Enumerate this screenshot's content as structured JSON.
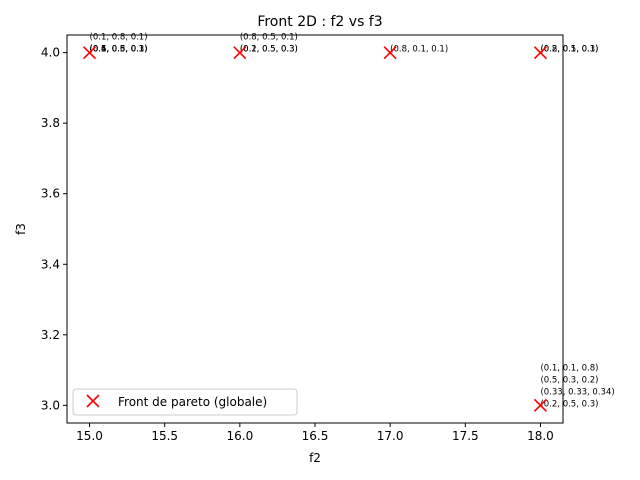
{
  "chart_data": {
    "type": "scatter",
    "title": "Front 2D : f2 vs f3",
    "xlabel": "f2",
    "ylabel": "f3",
    "xlim": [
      14.85,
      18.15
    ],
    "ylim": [
      2.95,
      4.05
    ],
    "x_ticks": [
      15.0,
      15.5,
      16.0,
      16.5,
      17.0,
      17.5,
      18.0
    ],
    "x_tick_labels": [
      "15.0",
      "15.5",
      "16.0",
      "16.5",
      "17.0",
      "17.5",
      "18.0"
    ],
    "y_ticks": [
      3.0,
      3.2,
      3.4,
      3.6,
      3.8,
      4.0
    ],
    "y_tick_labels": [
      "3.0",
      "3.2",
      "3.4",
      "3.6",
      "3.8",
      "4.0"
    ],
    "grid": false,
    "legend_position": "lower-left",
    "series": [
      {
        "name": "Front de pareto (globale)",
        "marker": "x",
        "color": "#ff0000",
        "points": [
          {
            "x": 15.0,
            "y": 4.0
          },
          {
            "x": 16.0,
            "y": 4.0
          },
          {
            "x": 17.0,
            "y": 4.0
          },
          {
            "x": 18.0,
            "y": 4.0
          },
          {
            "x": 18.0,
            "y": 3.0
          }
        ]
      }
    ],
    "annotation_groups": [
      {
        "x": 15.0,
        "y": 4.0,
        "labels": [
          "(0.6, 0.3, 0.1)",
          "(0.1, 0.8, 0.1)",
          "(0.4, 0.5, 0.1)",
          "(0.5, 0.5, 0.3)",
          "(0.1, 0.6, 0.3)"
        ]
      },
      {
        "x": 16.0,
        "y": 4.0,
        "labels": [
          "(0.2, 0.5, 0.3)",
          "(0.8, 0.5, 0.1)",
          "(0.1, 0.5, 0.3)"
        ]
      },
      {
        "x": 17.0,
        "y": 4.0,
        "labels": [
          "(0.8, 0.1, 0.1)"
        ]
      },
      {
        "x": 18.0,
        "y": 4.0,
        "labels": [
          "(0.8, 0.1, 0.1)",
          "(0.2, 0.5, 0.3)"
        ]
      },
      {
        "x": 18.0,
        "y": 3.0,
        "labels": [
          "(0.1, 0.1, 0.8)",
          "(0.5, 0.3, 0.2)",
          "(0.33, 0.33, 0.34)",
          "(0.2, 0.5, 0.3)"
        ]
      }
    ]
  }
}
